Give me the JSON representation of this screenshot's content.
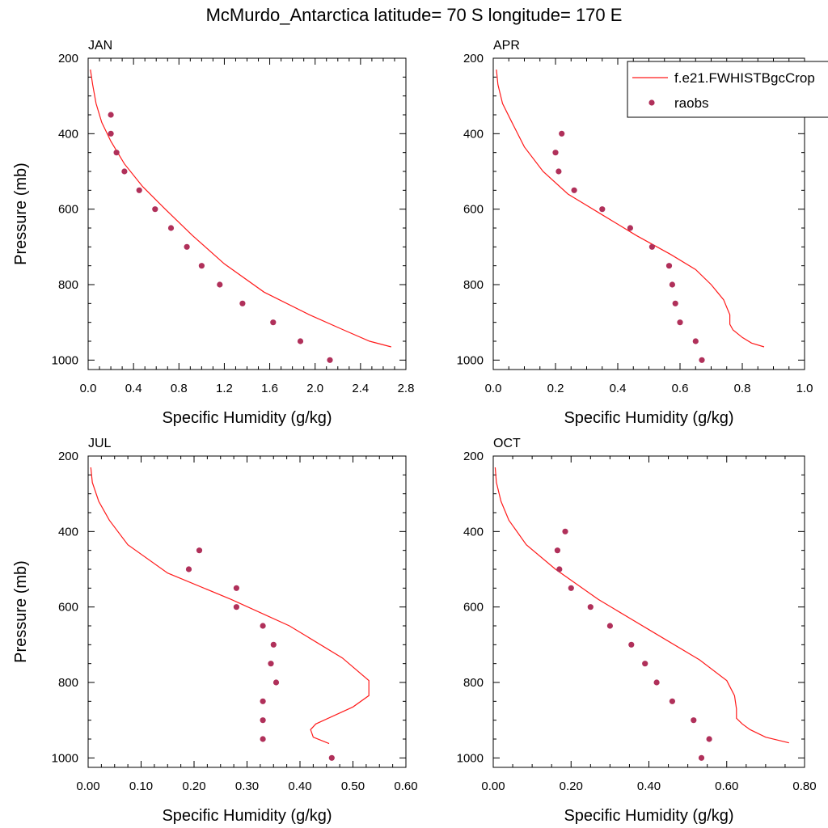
{
  "title": "McMurdo_Antarctica  latitude= 70 S longitude= 170 E",
  "colors": {
    "model_line": "#ff1a1a",
    "obs_marker": "#b0305a",
    "axis": "#000000"
  },
  "legend": {
    "placement": "top-right of APR panel",
    "entries": [
      {
        "label": "f.e21.FWHISTBgcCrop",
        "style": "line"
      },
      {
        "label": "raobs",
        "style": "marker"
      }
    ]
  },
  "chart_data": [
    {
      "type": "line",
      "panel": "JAN",
      "xlabel": "Specific Humidity (g/kg)",
      "ylabel": "Pressure (mb)",
      "xlim": [
        0,
        2.8
      ],
      "ylim": [
        200,
        1025
      ],
      "y_inverted": true,
      "xticks": [
        "0.0",
        "0.4",
        "0.8",
        "1.2",
        "1.6",
        "2.0",
        "2.4",
        "2.8"
      ],
      "yticks": [
        "200",
        "400",
        "600",
        "800",
        "1000"
      ],
      "series": [
        {
          "name": "f.e21.FWHISTBgcCrop",
          "kind": "line",
          "x": [
            0.02,
            0.04,
            0.07,
            0.12,
            0.2,
            0.32,
            0.48,
            0.68,
            0.92,
            1.2,
            1.55,
            1.95,
            2.25,
            2.48,
            2.67
          ],
          "y": [
            230,
            270,
            320,
            370,
            420,
            480,
            540,
            600,
            670,
            745,
            820,
            880,
            920,
            950,
            965
          ]
        },
        {
          "name": "raobs",
          "kind": "scatter",
          "x": [
            0.2,
            0.2,
            0.25,
            0.32,
            0.45,
            0.59,
            0.73,
            0.87,
            1.0,
            1.16,
            1.36,
            1.63,
            1.87,
            2.13
          ],
          "y": [
            350,
            400,
            450,
            500,
            550,
            600,
            650,
            700,
            750,
            800,
            850,
            900,
            950,
            1000
          ]
        }
      ]
    },
    {
      "type": "line",
      "panel": "APR",
      "xlabel": "Specific Humidity (g/kg)",
      "ylabel": "",
      "xlim": [
        0,
        1.0
      ],
      "ylim": [
        200,
        1025
      ],
      "y_inverted": true,
      "xticks": [
        "0.0",
        "0.2",
        "0.4",
        "0.6",
        "0.8",
        "1.0"
      ],
      "yticks": [
        "200",
        "400",
        "600",
        "800",
        "1000"
      ],
      "series": [
        {
          "name": "f.e21.FWHISTBgcCrop",
          "kind": "line",
          "x": [
            0.01,
            0.015,
            0.03,
            0.06,
            0.1,
            0.16,
            0.24,
            0.34,
            0.46,
            0.57,
            0.65,
            0.7,
            0.74,
            0.76,
            0.76,
            0.77,
            0.8,
            0.83,
            0.87
          ],
          "y": [
            230,
            270,
            320,
            370,
            435,
            500,
            560,
            610,
            670,
            720,
            760,
            800,
            840,
            880,
            905,
            920,
            940,
            955,
            965
          ]
        },
        {
          "name": "raobs",
          "kind": "scatter",
          "x": [
            0.22,
            0.2,
            0.21,
            0.26,
            0.35,
            0.44,
            0.51,
            0.565,
            0.575,
            0.585,
            0.6,
            0.65,
            0.67
          ],
          "y": [
            400,
            450,
            500,
            550,
            600,
            650,
            700,
            750,
            800,
            850,
            900,
            950,
            1000
          ]
        }
      ]
    },
    {
      "type": "line",
      "panel": "JUL",
      "xlabel": "Specific Humidity (g/kg)",
      "ylabel": "Pressure (mb)",
      "xlim": [
        0,
        0.6
      ],
      "ylim": [
        200,
        1025
      ],
      "y_inverted": true,
      "xticks": [
        "0.00",
        "0.10",
        "0.20",
        "0.30",
        "0.40",
        "0.50",
        "0.60"
      ],
      "yticks": [
        "200",
        "400",
        "600",
        "800",
        "1000"
      ],
      "series": [
        {
          "name": "f.e21.FWHISTBgcCrop",
          "kind": "line",
          "x": [
            0.005,
            0.008,
            0.02,
            0.04,
            0.075,
            0.15,
            0.27,
            0.38,
            0.48,
            0.53,
            0.53,
            0.5,
            0.43,
            0.42,
            0.425,
            0.455
          ],
          "y": [
            230,
            270,
            320,
            370,
            435,
            510,
            580,
            650,
            735,
            795,
            835,
            865,
            910,
            925,
            945,
            962
          ]
        },
        {
          "name": "raobs",
          "kind": "scatter",
          "x": [
            0.21,
            0.19,
            0.28,
            0.28,
            0.33,
            0.35,
            0.345,
            0.355,
            0.33,
            0.33,
            0.33,
            0.46
          ],
          "y": [
            450,
            500,
            550,
            600,
            650,
            700,
            750,
            800,
            850,
            900,
            950,
            1000
          ]
        }
      ]
    },
    {
      "type": "line",
      "panel": "OCT",
      "xlabel": "Specific Humidity (g/kg)",
      "ylabel": "",
      "xlim": [
        0,
        0.8
      ],
      "ylim": [
        200,
        1025
      ],
      "y_inverted": true,
      "xticks": [
        "0.00",
        "0.20",
        "0.40",
        "0.60",
        "0.80"
      ],
      "yticks": [
        "200",
        "400",
        "600",
        "800",
        "1000"
      ],
      "series": [
        {
          "name": "f.e21.FWHISTBgcCrop",
          "kind": "line",
          "x": [
            0.005,
            0.008,
            0.02,
            0.04,
            0.085,
            0.16,
            0.27,
            0.4,
            0.53,
            0.6,
            0.62,
            0.625,
            0.625,
            0.64,
            0.66,
            0.7,
            0.76
          ],
          "y": [
            230,
            270,
            320,
            370,
            435,
            500,
            580,
            660,
            740,
            795,
            835,
            870,
            895,
            910,
            925,
            945,
            960
          ]
        },
        {
          "name": "raobs",
          "kind": "scatter",
          "x": [
            0.185,
            0.165,
            0.17,
            0.2,
            0.25,
            0.3,
            0.355,
            0.39,
            0.42,
            0.46,
            0.515,
            0.555,
            0.535
          ],
          "y": [
            400,
            450,
            500,
            550,
            600,
            650,
            700,
            750,
            800,
            850,
            900,
            950,
            1000
          ]
        }
      ]
    }
  ]
}
